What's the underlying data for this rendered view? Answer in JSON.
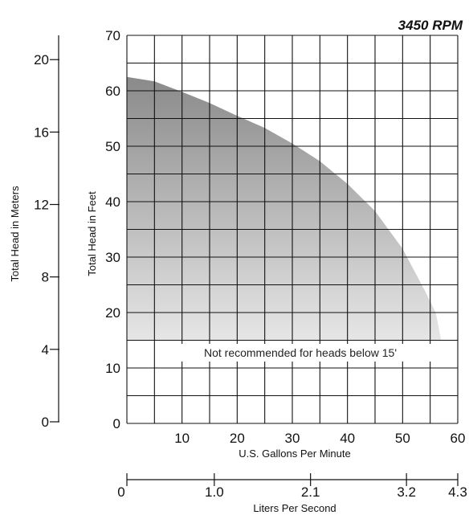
{
  "chart_data": {
    "type": "area",
    "rpm_label": "3450 RPM",
    "note": "Not recommended for heads below 15'",
    "note_min_head_ft": 15,
    "x": {
      "label": "U.S. Gallons Per Minute",
      "range": [
        0,
        60
      ],
      "ticks": [
        10,
        20,
        30,
        40,
        50,
        60
      ],
      "grid_step": 5
    },
    "y": {
      "label": "Total Head in Feet",
      "range": [
        0,
        70
      ],
      "ticks": [
        0,
        10,
        20,
        30,
        40,
        50,
        60,
        70
      ],
      "grid_step": 5
    },
    "y2": {
      "label": "Total Head in Meters",
      "range": [
        0,
        21.34
      ],
      "ticks": [
        0,
        4,
        8,
        12,
        16,
        20
      ]
    },
    "x2": {
      "label": "Liters Per Second",
      "range": [
        0,
        3.785
      ],
      "ticks": [
        "0",
        "1.0",
        "2.1",
        "3.2",
        "4.3"
      ],
      "tick_gpm": [
        0,
        15.85,
        33.3,
        50.7,
        68.2
      ]
    },
    "series": [
      {
        "x": [
          0,
          5,
          10,
          15,
          20,
          25,
          30,
          35,
          40,
          45,
          50,
          54,
          56,
          57
        ],
        "y": [
          62.5,
          61.7,
          59.8,
          57.8,
          55.5,
          53.3,
          50.5,
          47.3,
          43.2,
          38.3,
          31.5,
          24.0,
          20.0,
          15.0
        ]
      }
    ],
    "colors": {
      "fill_top": "#8a8a8a",
      "fill_bottom": "#e6e6e6",
      "grid": "#111111"
    },
    "grid": true
  }
}
